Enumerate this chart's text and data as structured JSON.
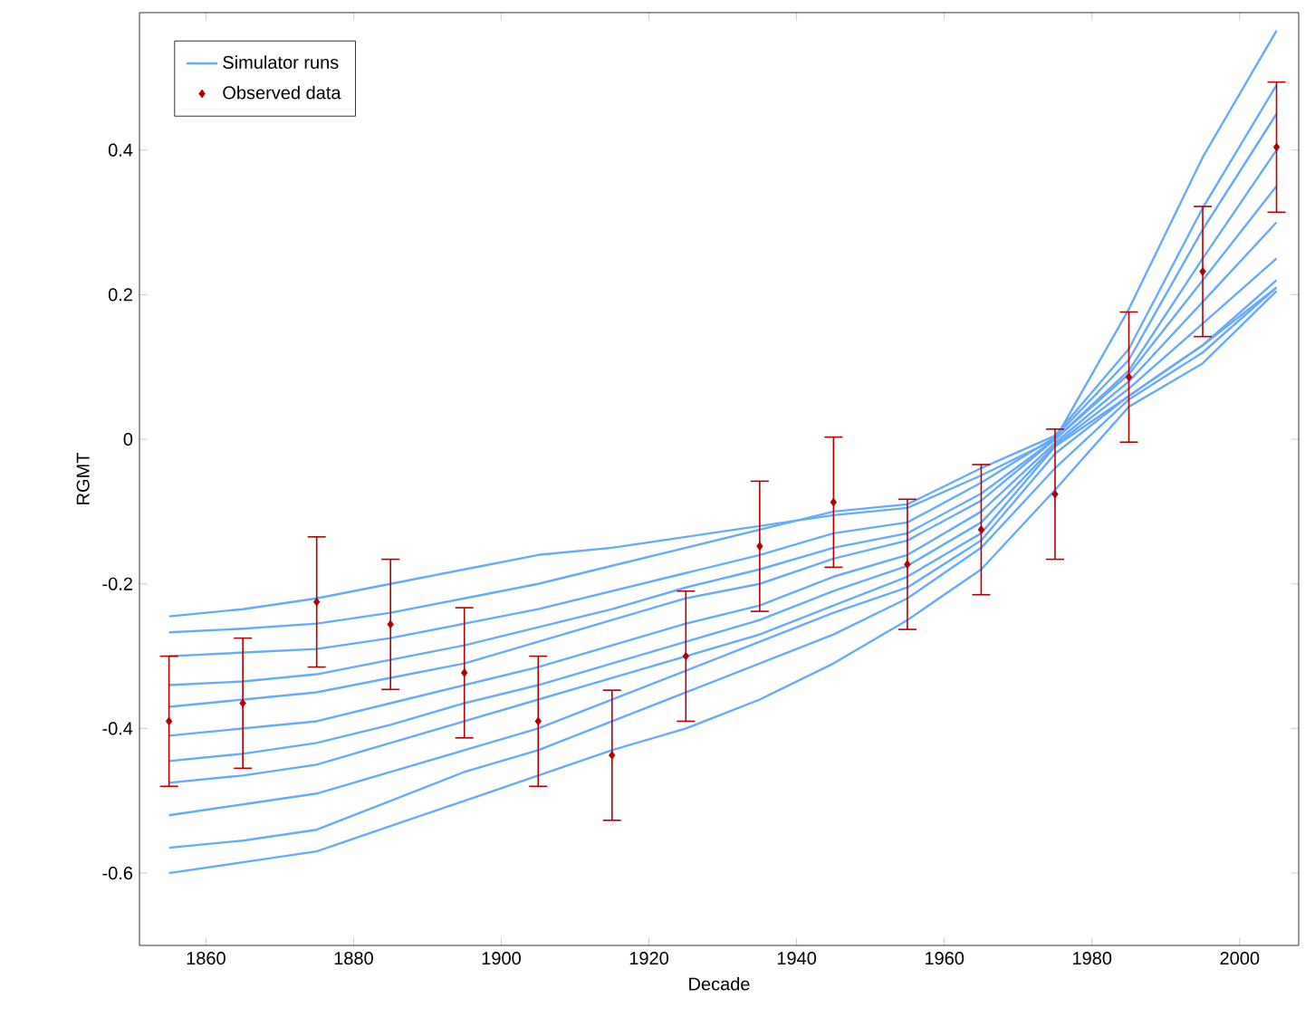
{
  "chart_data": {
    "type": "line",
    "xlabel": "Decade",
    "ylabel": "RGMT",
    "xlim": [
      1851,
      2008
    ],
    "ylim": [
      -0.7,
      0.59
    ],
    "xticks": [
      1860,
      1880,
      1900,
      1920,
      1940,
      1960,
      1980,
      2000
    ],
    "yticks": [
      -0.6,
      -0.4,
      -0.2,
      0,
      0.2,
      0.4
    ],
    "grid": false,
    "legend": "top left",
    "x": [
      1855,
      1865,
      1875,
      1885,
      1895,
      1905,
      1915,
      1925,
      1935,
      1945,
      1955,
      1965,
      1975,
      1985,
      1995,
      2005
    ],
    "series": [
      {
        "name": "Simulator runs",
        "color": "#66aaff",
        "values": [
          -0.267,
          -0.262,
          -0.255,
          -0.24,
          -0.22,
          -0.2,
          -0.175,
          -0.15,
          -0.125,
          -0.1,
          -0.09,
          -0.04,
          0.005,
          0.125,
          0.32,
          0.49
        ]
      },
      {
        "color": "#66aaff",
        "values": [
          -0.3,
          -0.295,
          -0.29,
          -0.275,
          -0.255,
          -0.235,
          -0.21,
          -0.185,
          -0.16,
          -0.13,
          -0.115,
          -0.06,
          0.003,
          0.11,
          0.29,
          0.45
        ]
      },
      {
        "color": "#66aaff",
        "values": [
          -0.34,
          -0.335,
          -0.325,
          -0.305,
          -0.285,
          -0.26,
          -0.235,
          -0.205,
          -0.18,
          -0.15,
          -0.13,
          -0.075,
          0,
          0.095,
          0.25,
          0.4
        ]
      },
      {
        "color": "#66aaff",
        "values": [
          -0.37,
          -0.36,
          -0.35,
          -0.33,
          -0.31,
          -0.28,
          -0.25,
          -0.22,
          -0.2,
          -0.165,
          -0.14,
          -0.085,
          0,
          0.09,
          0.22,
          0.35
        ]
      },
      {
        "color": "#66aaff",
        "values": [
          -0.41,
          -0.4,
          -0.39,
          -0.365,
          -0.34,
          -0.315,
          -0.285,
          -0.255,
          -0.23,
          -0.19,
          -0.16,
          -0.1,
          -0.005,
          0.08,
          0.19,
          0.3
        ]
      },
      {
        "color": "#66aaff",
        "values": [
          -0.445,
          -0.435,
          -0.42,
          -0.395,
          -0.365,
          -0.34,
          -0.31,
          -0.28,
          -0.25,
          -0.21,
          -0.175,
          -0.115,
          -0.008,
          0.07,
          0.16,
          0.25
        ]
      },
      {
        "color": "#66aaff",
        "values": [
          -0.475,
          -0.465,
          -0.45,
          -0.42,
          -0.39,
          -0.36,
          -0.33,
          -0.3,
          -0.27,
          -0.23,
          -0.19,
          -0.13,
          -0.01,
          0.06,
          0.13,
          0.21
        ]
      },
      {
        "color": "#66aaff",
        "values": [
          -0.245,
          -0.235,
          -0.22,
          -0.2,
          -0.18,
          -0.16,
          -0.15,
          -0.135,
          -0.12,
          -0.105,
          -0.095,
          -0.05,
          0,
          0.18,
          0.39,
          0.565
        ]
      },
      {
        "color": "#66aaff",
        "values": [
          -0.6,
          -0.585,
          -0.57,
          -0.535,
          -0.5,
          -0.465,
          -0.43,
          -0.4,
          -0.36,
          -0.31,
          -0.25,
          -0.18,
          -0.07,
          0.045,
          0.105,
          0.205
        ]
      },
      {
        "color": "#66aaff",
        "values": [
          -0.565,
          -0.555,
          -0.54,
          -0.5,
          -0.46,
          -0.43,
          -0.39,
          -0.35,
          -0.31,
          -0.27,
          -0.22,
          -0.15,
          -0.04,
          0.055,
          0.12,
          0.21
        ]
      },
      {
        "color": "#66aaff",
        "values": [
          -0.52,
          -0.505,
          -0.49,
          -0.46,
          -0.43,
          -0.4,
          -0.36,
          -0.32,
          -0.28,
          -0.24,
          -0.205,
          -0.14,
          -0.02,
          0.06,
          0.13,
          0.22
        ]
      },
      {
        "name": "Observed data",
        "type": "scatter",
        "color": "#b00000",
        "marker": "diamond",
        "values": [
          -0.39,
          -0.365,
          -0.225,
          -0.256,
          -0.323,
          -0.39,
          -0.437,
          -0.3,
          -0.148,
          -0.087,
          -0.173,
          -0.125,
          -0.076,
          0.086,
          0.232,
          0.404
        ],
        "errors": [
          0.09,
          0.09,
          0.09,
          0.09,
          0.09,
          0.09,
          0.09,
          0.09,
          0.09,
          0.09,
          0.09,
          0.09,
          0.09,
          0.09,
          0.09,
          0.09
        ]
      }
    ]
  }
}
